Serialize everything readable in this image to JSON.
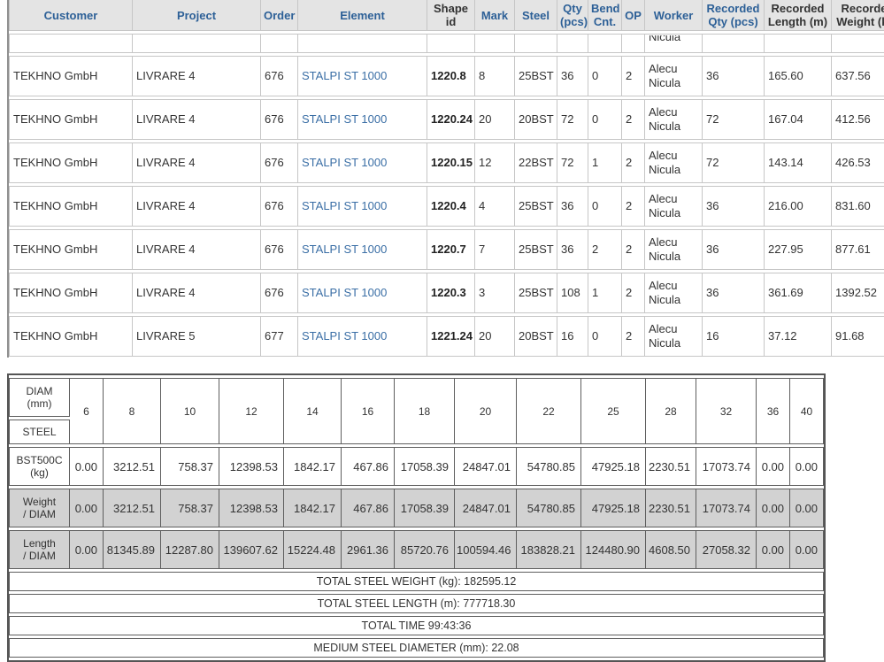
{
  "colors": {
    "header_text_blue": "#2d6097",
    "header_text_dark": "#333333",
    "link_blue": "#3a6ea5",
    "header_bg": "#e4e4e4",
    "gray_row_bg": "#d2d2d2"
  },
  "report": {
    "main_table": {
      "columns": [
        {
          "label": "Customer",
          "dark": false
        },
        {
          "label": "Project",
          "dark": false
        },
        {
          "label": "Order",
          "dark": false
        },
        {
          "label": "Element",
          "dark": false
        },
        {
          "label": "Shape id",
          "dark": true
        },
        {
          "label": "Mark",
          "dark": false
        },
        {
          "label": "Steel",
          "dark": false
        },
        {
          "label": "Qty (pcs)",
          "dark": false
        },
        {
          "label": "Bend Cnt.",
          "dark": false
        },
        {
          "label": "OP",
          "dark": false
        },
        {
          "label": "Worker",
          "dark": false
        },
        {
          "label": "Recorded Qty (pcs)",
          "dark": false
        },
        {
          "label": "Recorded Length (m)",
          "dark": true
        },
        {
          "label": "Recorded Weight (kg)",
          "dark": true
        }
      ],
      "partial_row_worker": "Nicula",
      "rows": [
        {
          "customer": "TEKHNO GmbH",
          "project": "LIVRARE 4",
          "order": "676",
          "element": "STALPI ST 1000",
          "shape_id": "1220.8",
          "mark": "8",
          "steel": "25BST",
          "qty": "36",
          "bend_cnt": "0",
          "op": "2",
          "worker": "Alecu Nicula",
          "recorded_qty": "36",
          "recorded_length": "165.60",
          "recorded_weight": "637.56"
        },
        {
          "customer": "TEKHNO GmbH",
          "project": "LIVRARE 4",
          "order": "676",
          "element": "STALPI ST 1000",
          "shape_id": "1220.24",
          "mark": "20",
          "steel": "20BST",
          "qty": "72",
          "bend_cnt": "0",
          "op": "2",
          "worker": "Alecu Nicula",
          "recorded_qty": "72",
          "recorded_length": "167.04",
          "recorded_weight": "412.56"
        },
        {
          "customer": "TEKHNO GmbH",
          "project": "LIVRARE 4",
          "order": "676",
          "element": "STALPI ST 1000",
          "shape_id": "1220.15",
          "mark": "12",
          "steel": "22BST",
          "qty": "72",
          "bend_cnt": "1",
          "op": "2",
          "worker": "Alecu Nicula",
          "recorded_qty": "72",
          "recorded_length": "143.14",
          "recorded_weight": "426.53"
        },
        {
          "customer": "TEKHNO GmbH",
          "project": "LIVRARE 4",
          "order": "676",
          "element": "STALPI ST 1000",
          "shape_id": "1220.4",
          "mark": "4",
          "steel": "25BST",
          "qty": "36",
          "bend_cnt": "0",
          "op": "2",
          "worker": "Alecu Nicula",
          "recorded_qty": "36",
          "recorded_length": "216.00",
          "recorded_weight": "831.60"
        },
        {
          "customer": "TEKHNO GmbH",
          "project": "LIVRARE 4",
          "order": "676",
          "element": "STALPI ST 1000",
          "shape_id": "1220.7",
          "mark": "7",
          "steel": "25BST",
          "qty": "36",
          "bend_cnt": "2",
          "op": "2",
          "worker": "Alecu Nicula",
          "recorded_qty": "36",
          "recorded_length": "227.95",
          "recorded_weight": "877.61"
        },
        {
          "customer": "TEKHNO GmbH",
          "project": "LIVRARE 4",
          "order": "676",
          "element": "STALPI ST 1000",
          "shape_id": "1220.3",
          "mark": "3",
          "steel": "25BST",
          "qty": "108",
          "bend_cnt": "1",
          "op": "2",
          "worker": "Alecu Nicula",
          "recorded_qty": "36",
          "recorded_length": "361.69",
          "recorded_weight": "1392.52"
        },
        {
          "customer": "TEKHNO GmbH",
          "project": "LIVRARE 5",
          "order": "677",
          "element": "STALPI ST 1000",
          "shape_id": "1221.24",
          "mark": "20",
          "steel": "20BST",
          "qty": "16",
          "bend_cnt": "0",
          "op": "2",
          "worker": "Alecu Nicula",
          "recorded_qty": "16",
          "recorded_length": "37.12",
          "recorded_weight": "91.68"
        }
      ]
    },
    "summary_table": {
      "corner_top": "DIAM\n(mm)",
      "corner_bottom": "STEEL",
      "diameters": [
        "6",
        "8",
        "10",
        "12",
        "14",
        "16",
        "18",
        "20",
        "22",
        "25",
        "28",
        "32",
        "36",
        "40"
      ],
      "rows": [
        {
          "label": "BST500C\n(kg)",
          "gray": false,
          "values": [
            "0.00",
            "3212.51",
            "758.37",
            "12398.53",
            "1842.17",
            "467.86",
            "17058.39",
            "24847.01",
            "54780.85",
            "47925.18",
            "2230.51",
            "17073.74",
            "0.00",
            "0.00"
          ]
        },
        {
          "label": "Weight\n/ DIAM",
          "gray": true,
          "values": [
            "0.00",
            "3212.51",
            "758.37",
            "12398.53",
            "1842.17",
            "467.86",
            "17058.39",
            "24847.01",
            "54780.85",
            "47925.18",
            "2230.51",
            "17073.74",
            "0.00",
            "0.00"
          ]
        },
        {
          "label": "Length\n/ DIAM",
          "gray": true,
          "values": [
            "0.00",
            "81345.89",
            "12287.80",
            "139607.62",
            "15224.48",
            "2961.36",
            "85720.76",
            "100594.46",
            "183828.21",
            "124480.90",
            "4608.50",
            "27058.32",
            "0.00",
            "0.00"
          ]
        }
      ],
      "totals": [
        "TOTAL STEEL WEIGHT (kg): 182595.12",
        "TOTAL STEEL LENGTH (m): 777718.30",
        "TOTAL TIME 99:43:36",
        "MEDIUM STEEL DIAMETER (mm): 22.08"
      ]
    }
  }
}
